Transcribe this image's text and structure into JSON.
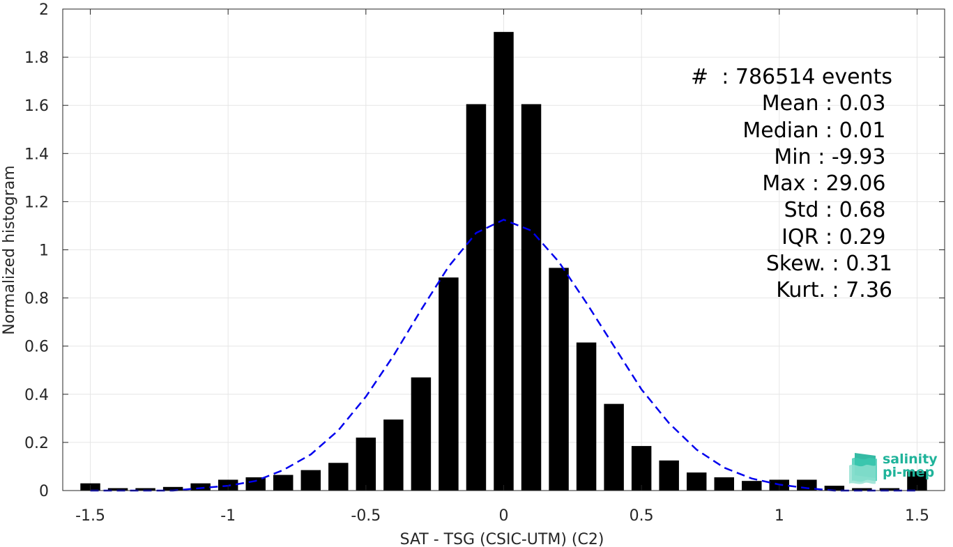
{
  "chart_data": {
    "type": "bar",
    "xlabel": "SAT - TSG (CSIC-UTM) (C2)",
    "ylabel": "Normalized histogram",
    "xlim": [
      -1.6,
      1.6
    ],
    "ylim": [
      0,
      2
    ],
    "xticks": [
      -1.5,
      -1,
      -0.5,
      0,
      0.5,
      1,
      1.5
    ],
    "xtick_labels": [
      "-1.5",
      "-1",
      "-0.5",
      "0",
      "0.5",
      "1",
      "1.5"
    ],
    "yticks": [
      0,
      0.2,
      0.4,
      0.6,
      0.8,
      1,
      1.2,
      1.4,
      1.6,
      1.8,
      2
    ],
    "ytick_labels": [
      "0",
      "0.2",
      "0.4",
      "0.6",
      "0.8",
      "1",
      "1.2",
      "1.4",
      "1.6",
      "1.8",
      "2"
    ],
    "grid": true,
    "bar_color": "#000000",
    "bin_width": 0.1,
    "x": [
      -1.5,
      -1.4,
      -1.3,
      -1.2,
      -1.1,
      -1.0,
      -0.9,
      -0.8,
      -0.7,
      -0.6,
      -0.5,
      -0.4,
      -0.3,
      -0.2,
      -0.1,
      0.0,
      0.1,
      0.2,
      0.3,
      0.4,
      0.5,
      0.6,
      0.7,
      0.8,
      0.9,
      1.0,
      1.1,
      1.2,
      1.3,
      1.4,
      1.5
    ],
    "values": [
      0.03,
      0.01,
      0.01,
      0.015,
      0.03,
      0.045,
      0.055,
      0.065,
      0.085,
      0.115,
      0.22,
      0.295,
      0.47,
      0.885,
      1.605,
      1.905,
      1.605,
      0.925,
      0.615,
      0.36,
      0.185,
      0.125,
      0.075,
      0.055,
      0.04,
      0.045,
      0.045,
      0.02,
      0.01,
      0.01,
      0.08
    ],
    "fit_curve": {
      "style": "dashed",
      "color": "#0000ee",
      "x": [
        -1.5,
        -1.4,
        -1.3,
        -1.2,
        -1.1,
        -1.0,
        -0.9,
        -0.8,
        -0.7,
        -0.6,
        -0.5,
        -0.4,
        -0.3,
        -0.2,
        -0.1,
        0.0,
        0.1,
        0.2,
        0.3,
        0.4,
        0.5,
        0.6,
        0.7,
        0.8,
        0.9,
        1.0,
        1.1,
        1.2,
        1.3,
        1.4,
        1.5
      ],
      "y": [
        0.0,
        0.0,
        0.0,
        0.0,
        0.01,
        0.02,
        0.04,
        0.085,
        0.15,
        0.25,
        0.39,
        0.56,
        0.75,
        0.93,
        1.07,
        1.125,
        1.08,
        0.95,
        0.78,
        0.6,
        0.42,
        0.28,
        0.17,
        0.095,
        0.05,
        0.025,
        0.01,
        0.0,
        0.0,
        0.0,
        0.0
      ]
    }
  },
  "stats": [
    "#  : 786514 events",
    "Mean : 0.03 ",
    "Median : 0.01 ",
    "Min : -9.93 ",
    "Max : 29.06 ",
    "Std : 0.68 ",
    "IQR : 0.29 ",
    "Skew. : 0.31",
    "Kurt. : 7.36"
  ],
  "logo": {
    "line1": "salinity",
    "line2": "pi-mep",
    "color": "#1fb39a"
  }
}
